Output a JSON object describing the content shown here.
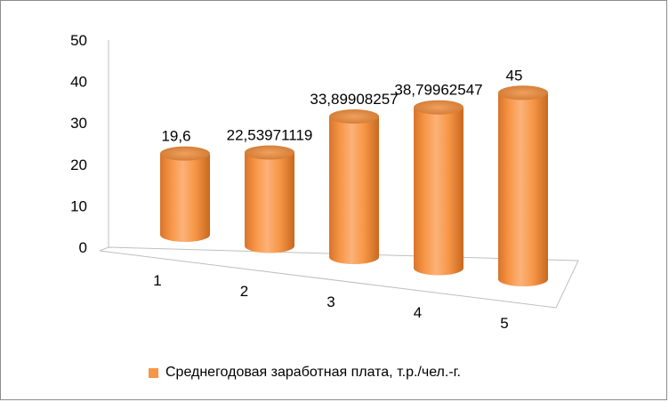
{
  "chart_data": {
    "type": "bar",
    "style": "3d-cylinder",
    "categories": [
      "1",
      "2",
      "3",
      "4",
      "5"
    ],
    "series": [
      {
        "name": "Среднегодовая заработная плата, т.р./чел.-г.",
        "values": [
          19.6,
          22.53971119,
          33.89908257,
          38.79962547,
          45
        ],
        "labels": [
          "19,6",
          "22,53971119",
          "33,89908257",
          "38,79962547",
          "45"
        ],
        "color": "#f79646"
      }
    ],
    "ylim": [
      0,
      50
    ],
    "yticks": [
      "0",
      "10",
      "20",
      "30",
      "40",
      "50"
    ],
    "legend_position": "bottom",
    "grid": false
  }
}
